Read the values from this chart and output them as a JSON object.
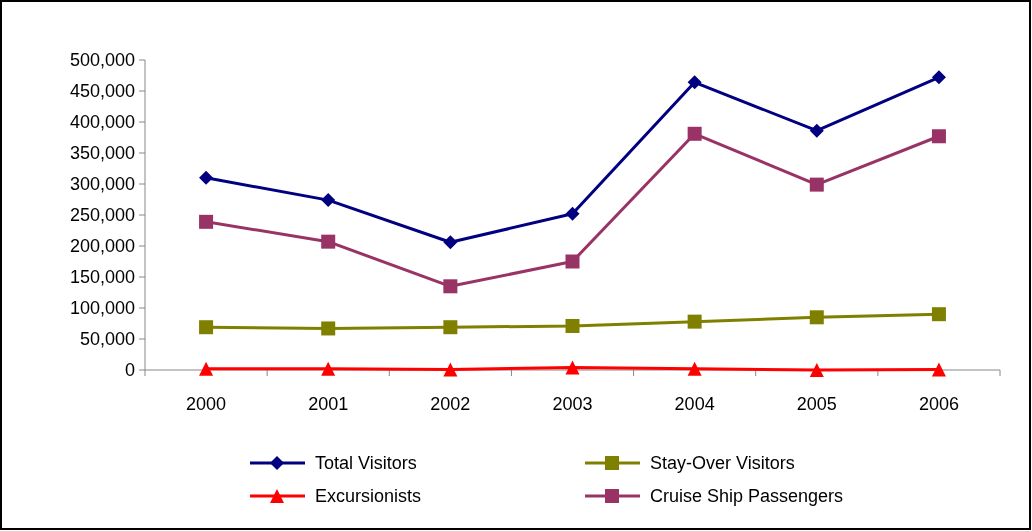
{
  "chart_data": {
    "type": "line",
    "categories": [
      "2000",
      "2001",
      "2002",
      "2003",
      "2004",
      "2005",
      "2006"
    ],
    "series": [
      {
        "name": "Total Visitors",
        "color": "#000080",
        "marker": "diamond",
        "values": [
          310000,
          274000,
          206000,
          252000,
          464000,
          386000,
          472000
        ]
      },
      {
        "name": "Stay-Over Visitors",
        "color": "#808000",
        "marker": "square",
        "values": [
          69000,
          67000,
          69000,
          71000,
          78000,
          85000,
          90000
        ]
      },
      {
        "name": "Excursionists",
        "color": "#ff0000",
        "marker": "triangle",
        "values": [
          2000,
          2000,
          1000,
          4000,
          2000,
          0,
          1000
        ]
      },
      {
        "name": "Cruise Ship Passengers",
        "color": "#993366",
        "marker": "square",
        "values": [
          239000,
          207000,
          135000,
          175000,
          381000,
          299000,
          377000
        ]
      }
    ],
    "ylim": [
      0,
      500000
    ],
    "yticks": [
      {
        "value": 0,
        "label": "0"
      },
      {
        "value": 50000,
        "label": "50,000"
      },
      {
        "value": 100000,
        "label": "100,000"
      },
      {
        "value": 150000,
        "label": "150,000"
      },
      {
        "value": 200000,
        "label": "200,000"
      },
      {
        "value": 250000,
        "label": "250,000"
      },
      {
        "value": 300000,
        "label": "300,000"
      },
      {
        "value": 350000,
        "label": "350,000"
      },
      {
        "value": 400000,
        "label": "400,000"
      },
      {
        "value": 450000,
        "label": "450,000"
      },
      {
        "value": 500000,
        "label": "500,000"
      }
    ],
    "grid": false,
    "legend": "bottom"
  }
}
